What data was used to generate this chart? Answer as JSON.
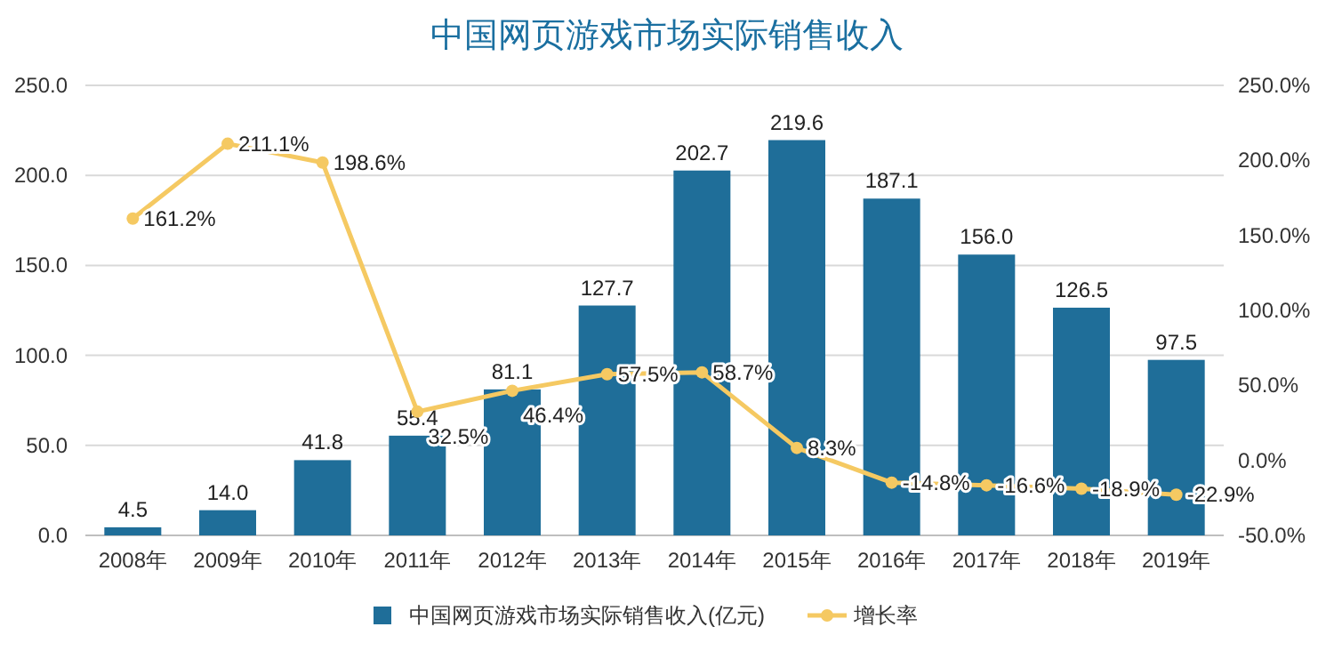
{
  "chart_data": {
    "type": "bar",
    "title": "中国网页游戏市场实际销售收入",
    "categories": [
      "2008年",
      "2009年",
      "2010年",
      "2011年",
      "2012年",
      "2013年",
      "2014年",
      "2015年",
      "2016年",
      "2017年",
      "2018年",
      "2019年"
    ],
    "series": [
      {
        "name": "中国网页游戏市场实际销售收入(亿元)",
        "color": "#1f6e99",
        "values": [
          4.5,
          14.0,
          41.8,
          55.4,
          81.1,
          127.7,
          202.7,
          219.6,
          187.1,
          156.0,
          126.5,
          97.5
        ],
        "value_labels": [
          "4.5",
          "14.0",
          "41.8",
          "55.4",
          "81.1",
          "127.7",
          "202.7",
          "219.6",
          "187.1",
          "156.0",
          "126.5",
          "97.5"
        ]
      },
      {
        "name": "增长率",
        "type": "line",
        "axis": "y2",
        "color": "#f5c962",
        "marker": "circle",
        "values": [
          161.2,
          211.1,
          198.6,
          32.5,
          46.4,
          57.5,
          58.7,
          8.3,
          -14.8,
          -16.6,
          -18.9,
          -22.9
        ],
        "value_labels": [
          "161.2%",
          "211.1%",
          "198.6%",
          "32.5%",
          "46.4%",
          "57.5%",
          "58.7%",
          "8.3%",
          "-14.8%",
          "-16.6%",
          "-18.9%",
          "-22.9%"
        ]
      }
    ],
    "ylim": [
      0,
      250
    ],
    "yticks": [
      {
        "value": 0,
        "label": "0.0"
      },
      {
        "value": 50,
        "label": "50.0"
      },
      {
        "value": 100,
        "label": "100.0"
      },
      {
        "value": 150,
        "label": "150.0"
      },
      {
        "value": 200,
        "label": "200.0"
      },
      {
        "value": 250,
        "label": "250.0"
      }
    ],
    "y2lim": [
      -50,
      250
    ],
    "y2ticks": [
      {
        "value": -50,
        "label": "-50.0%"
      },
      {
        "value": 0,
        "label": "0.0%"
      },
      {
        "value": 50,
        "label": "50.0%"
      },
      {
        "value": 100,
        "label": "100.0%"
      },
      {
        "value": 150,
        "label": "150.0%"
      },
      {
        "value": 200,
        "label": "200.0%"
      },
      {
        "value": 250,
        "label": "250.0%"
      }
    ],
    "grid": "y",
    "legend": "bottom"
  }
}
